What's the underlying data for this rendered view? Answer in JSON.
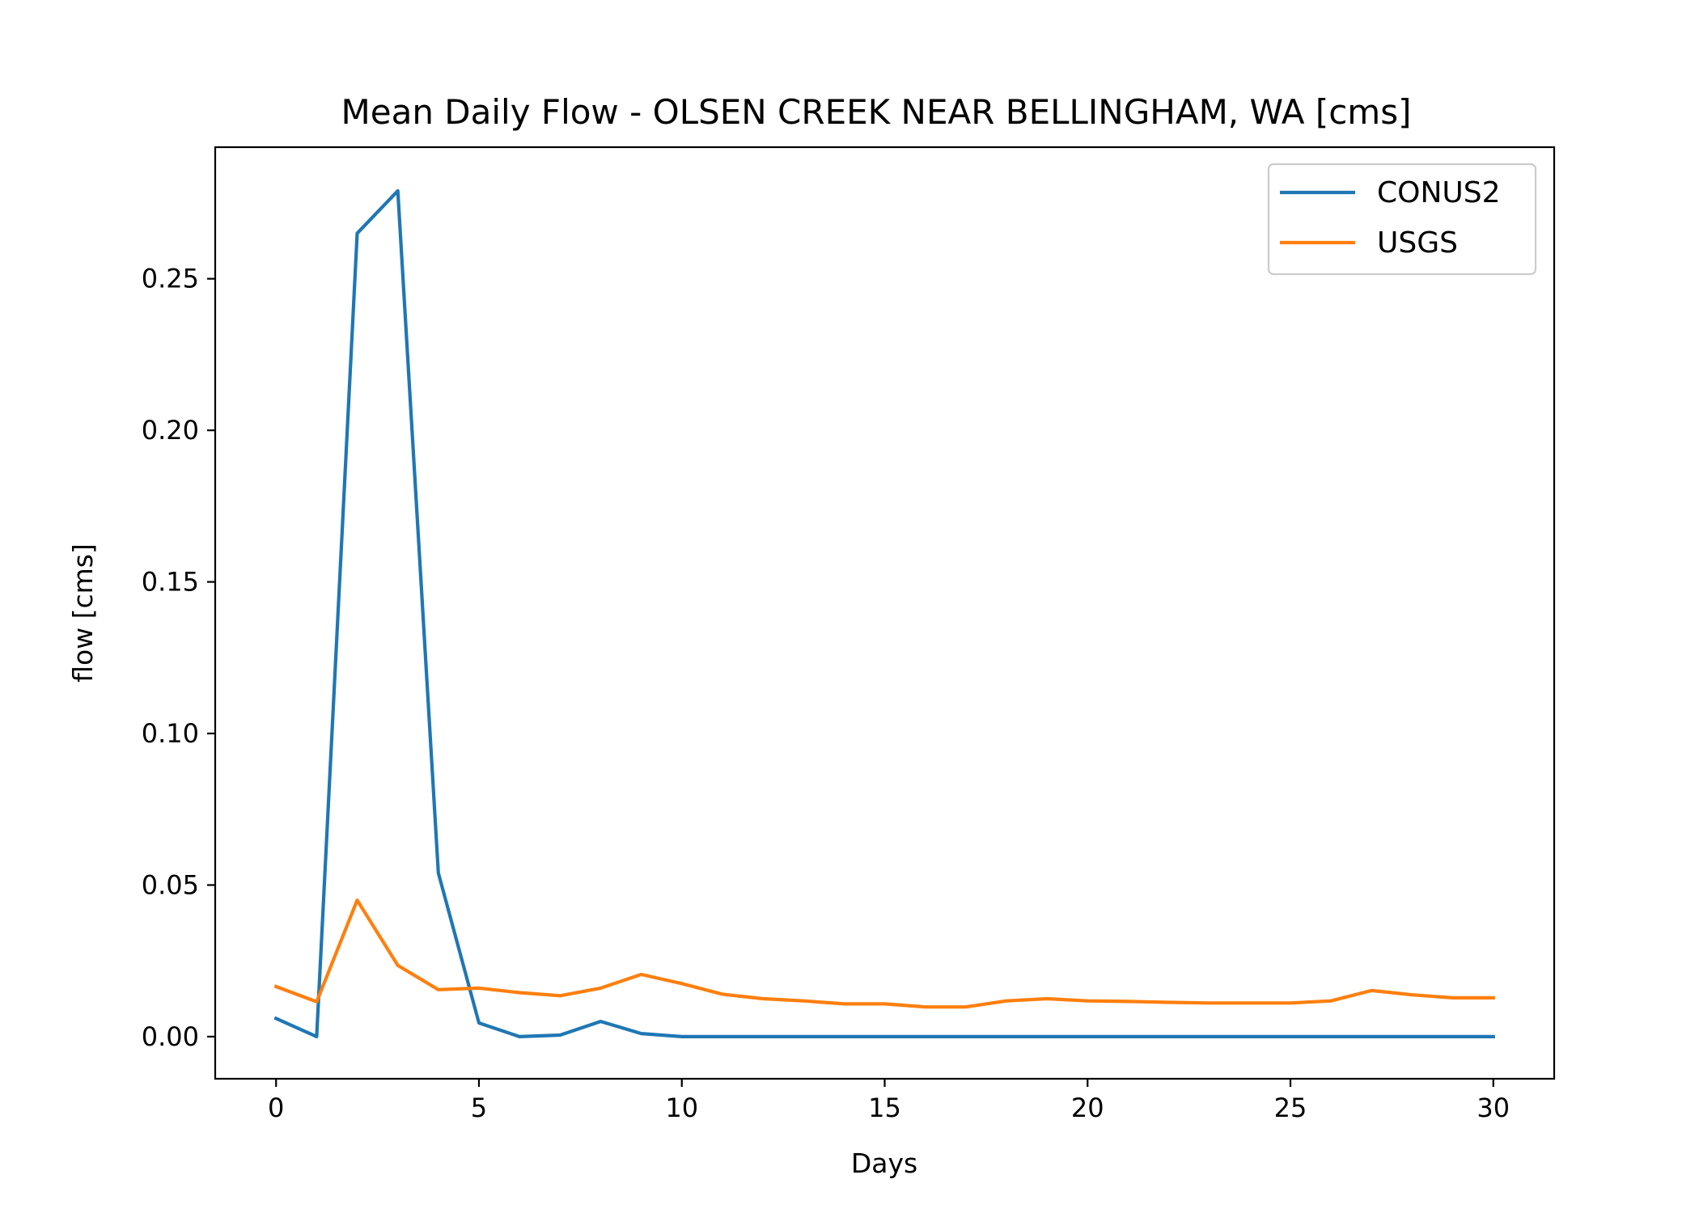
{
  "chart_data": {
    "type": "line",
    "title": "Mean Daily Flow - OLSEN CREEK NEAR BELLINGHAM, WA [cms]",
    "xlabel": "Days",
    "ylabel": "flow [cms]",
    "xlim": [
      -1.5,
      31.5
    ],
    "ylim": [
      -0.0139,
      0.2934
    ],
    "xticks": [
      0,
      5,
      10,
      15,
      20,
      25,
      30
    ],
    "xtick_labels": [
      "0",
      "5",
      "10",
      "15",
      "20",
      "25",
      "30"
    ],
    "yticks": [
      0.0,
      0.05,
      0.1,
      0.15,
      0.2,
      0.25
    ],
    "ytick_labels": [
      "0.00",
      "0.05",
      "0.10",
      "0.15",
      "0.20",
      "0.25"
    ],
    "grid": false,
    "legend_position": "top-right",
    "x": [
      0,
      1,
      2,
      3,
      4,
      5,
      6,
      7,
      8,
      9,
      10,
      11,
      12,
      13,
      14,
      15,
      16,
      17,
      18,
      19,
      20,
      21,
      22,
      23,
      24,
      25,
      26,
      27,
      28,
      29,
      30
    ],
    "series": [
      {
        "name": "CONUS2",
        "color": "#1f77b4",
        "values": [
          0.006,
          0.0,
          0.265,
          0.279,
          0.054,
          0.0045,
          0.0,
          0.0005,
          0.005,
          0.001,
          0.0,
          0.0,
          0.0,
          0.0,
          0.0,
          0.0,
          0.0,
          0.0,
          0.0,
          0.0,
          0.0,
          0.0,
          0.0,
          0.0,
          0.0,
          0.0,
          0.0,
          0.0,
          0.0,
          0.0,
          0.0
        ]
      },
      {
        "name": "USGS",
        "color": "#ff7f0e",
        "values": [
          0.0165,
          0.0115,
          0.045,
          0.0235,
          0.0155,
          0.016,
          0.0145,
          0.0135,
          0.016,
          0.0205,
          0.0175,
          0.014,
          0.0125,
          0.0118,
          0.0108,
          0.0108,
          0.0098,
          0.0098,
          0.0118,
          0.0125,
          0.0118,
          0.0116,
          0.0113,
          0.0111,
          0.0111,
          0.0111,
          0.0118,
          0.0152,
          0.0138,
          0.0128,
          0.0128
        ]
      }
    ]
  }
}
